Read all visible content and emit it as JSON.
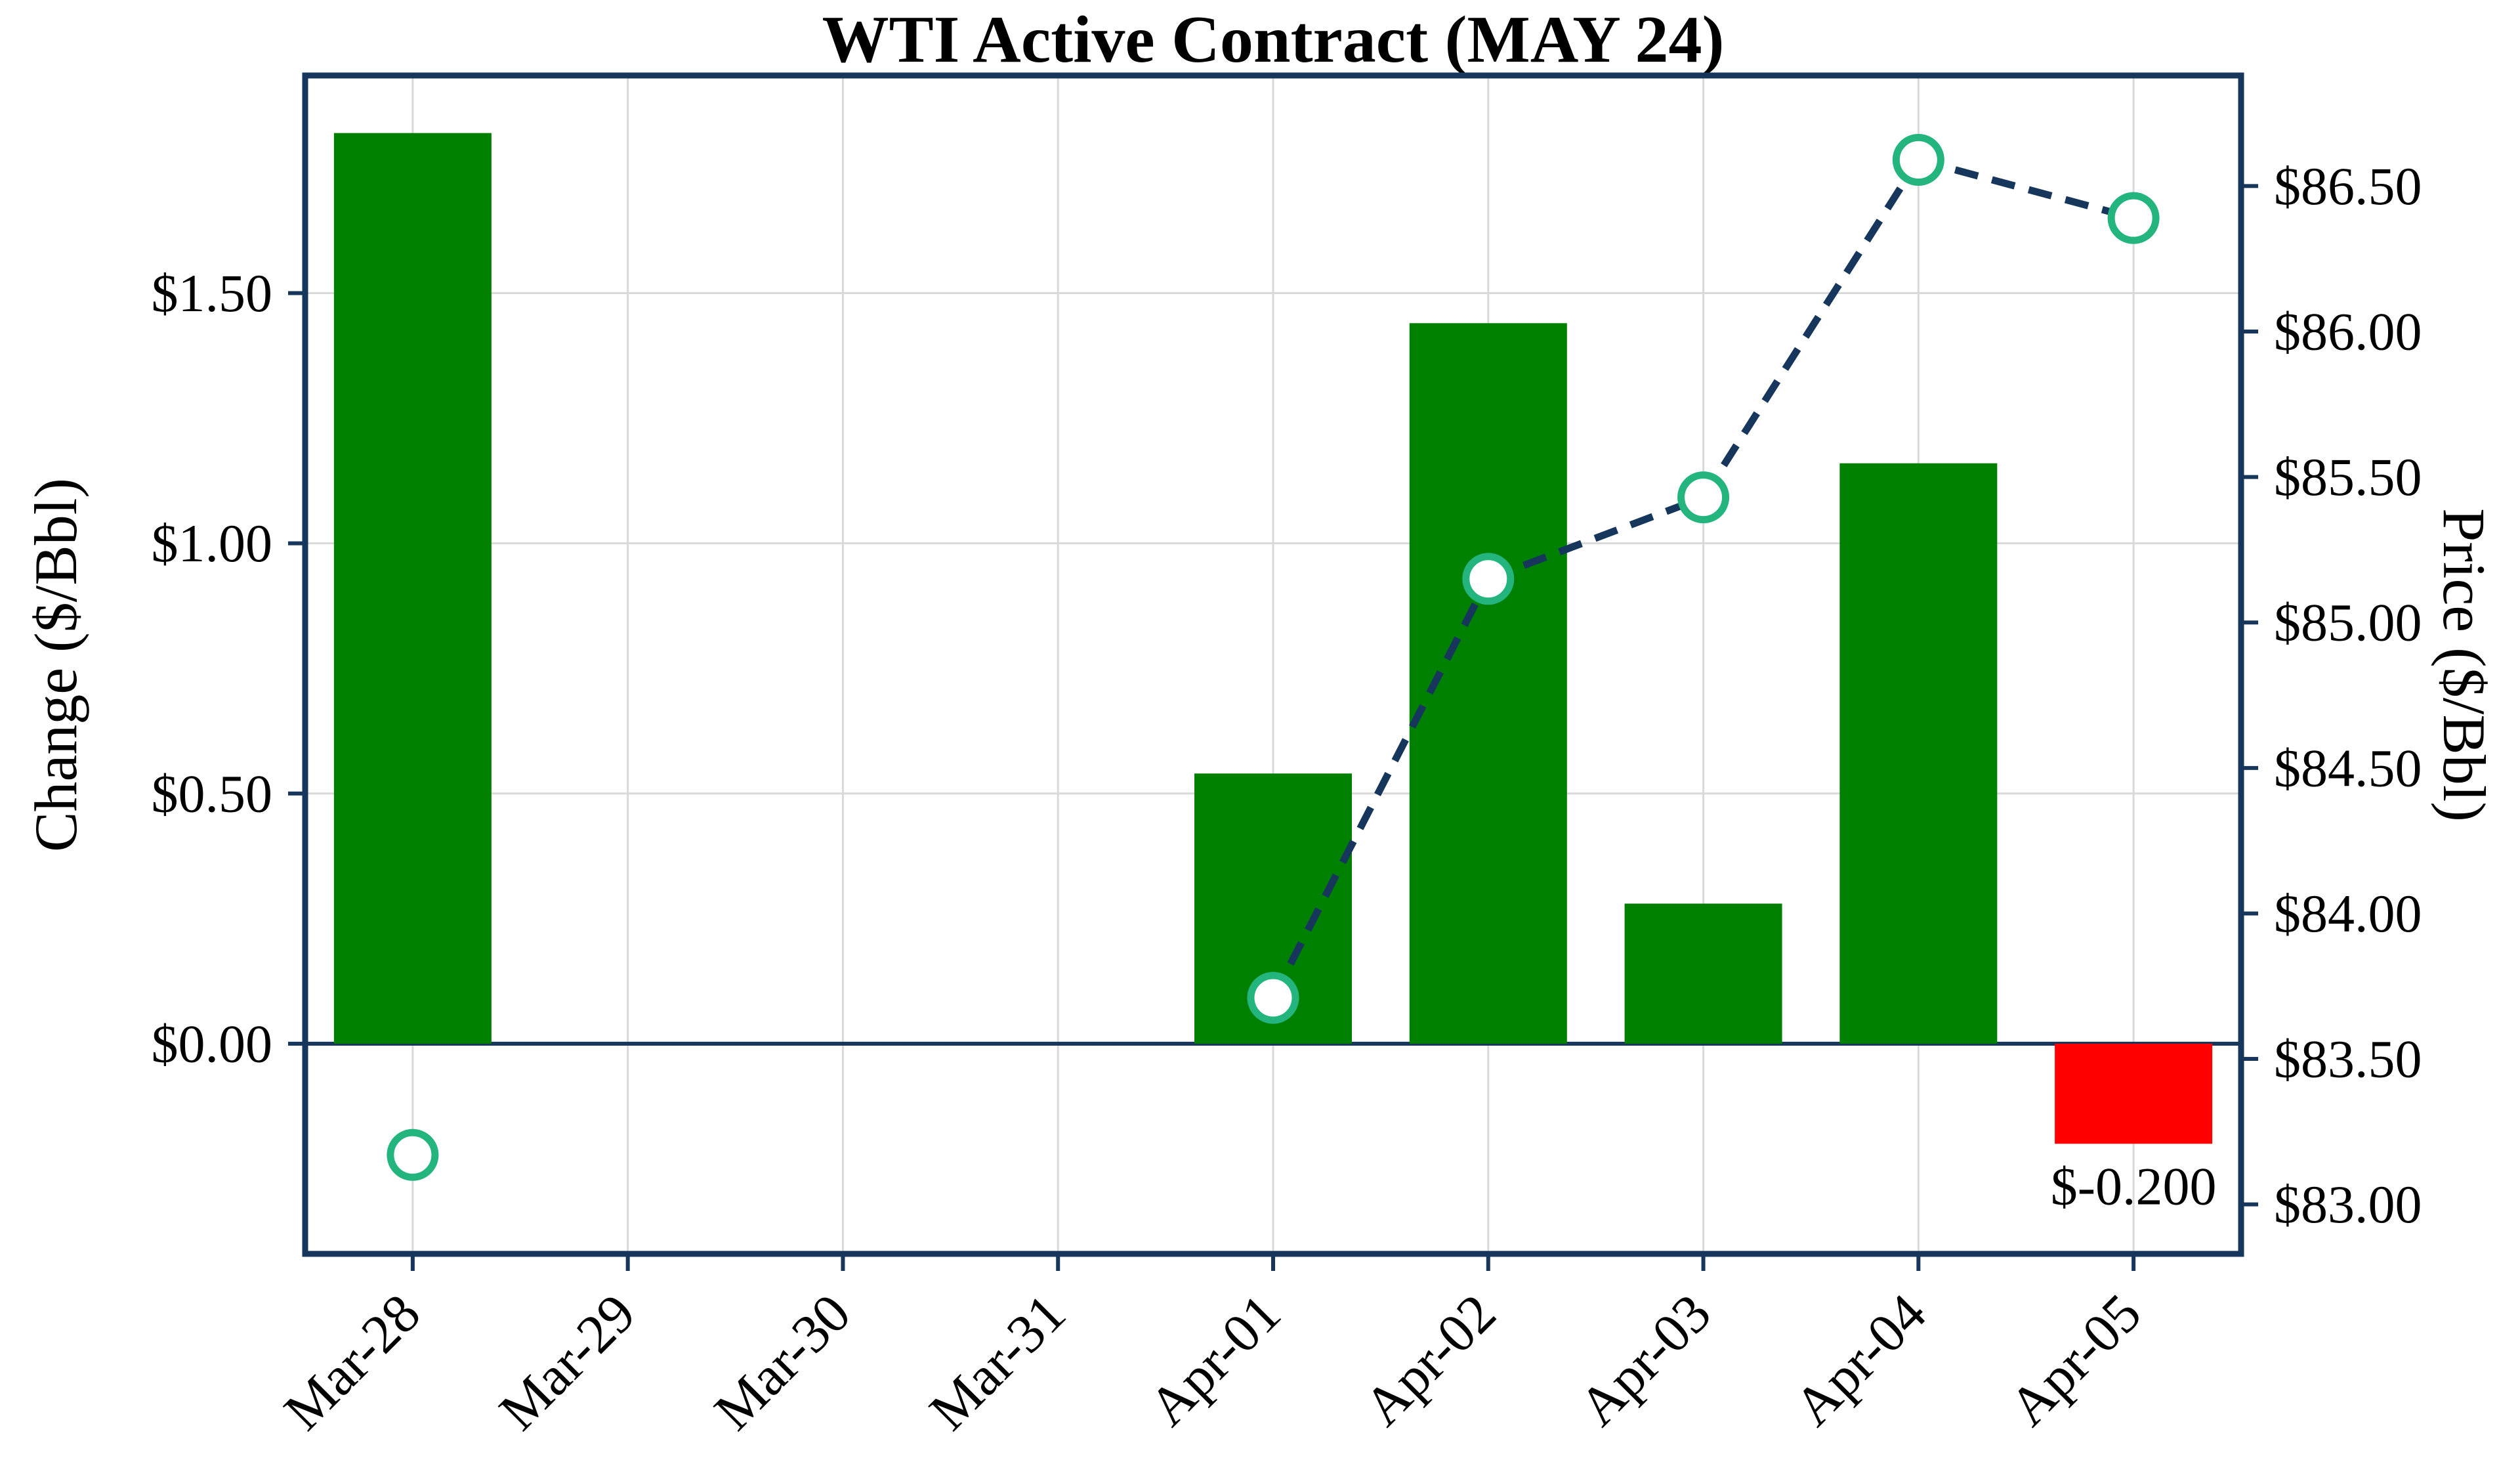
{
  "chart_data": {
    "type": "bar",
    "combo": true,
    "title": "WTI Active Contract (MAY 24)",
    "categories": [
      "Mar-28",
      "Mar-29",
      "Mar-30",
      "Mar-31",
      "Apr-01",
      "Apr-02",
      "Apr-03",
      "Apr-04",
      "Apr-05"
    ],
    "series": [
      {
        "name": "Change ($/Bbl)",
        "type": "bar",
        "axis": "left",
        "values": [
          1.82,
          null,
          null,
          null,
          0.54,
          1.44,
          0.28,
          1.16,
          -0.2
        ],
        "positive_color": "#008000",
        "negative_color": "#ff0000"
      },
      {
        "name": "Price ($/Bbl)",
        "type": "line",
        "axis": "right",
        "values": [
          83.17,
          null,
          null,
          null,
          83.71,
          85.15,
          85.43,
          86.59,
          86.39
        ],
        "line_color": "#16365c",
        "line_style": "dashed",
        "marker": "open-circle",
        "marker_color": "#24b47e",
        "marker_fill": "#ffffff"
      }
    ],
    "left_axis": {
      "label": "Change ($/Bbl)",
      "range": [
        -0.42,
        1.935
      ],
      "ticks": [
        {
          "value": 0.0,
          "label": "$0.00"
        },
        {
          "value": 0.5,
          "label": "$0.50"
        },
        {
          "value": 1.0,
          "label": "$1.00"
        },
        {
          "value": 1.5,
          "label": "$1.50"
        }
      ]
    },
    "right_axis": {
      "label": "Price ($/Bbl)",
      "range": [
        82.83,
        86.88
      ],
      "ticks": [
        {
          "value": 83.0,
          "label": "$83.00"
        },
        {
          "value": 83.5,
          "label": "$83.50"
        },
        {
          "value": 84.0,
          "label": "$84.00"
        },
        {
          "value": 84.5,
          "label": "$84.50"
        },
        {
          "value": 85.0,
          "label": "$85.00"
        },
        {
          "value": 85.5,
          "label": "$85.50"
        },
        {
          "value": 86.0,
          "label": "$86.00"
        },
        {
          "value": 86.5,
          "label": "$86.50"
        }
      ]
    },
    "annotation": {
      "text": "$-0.200",
      "category": "Apr-05"
    },
    "grid": true,
    "legend": "none",
    "colors": {
      "spine": "#16365c",
      "grid": "#d9d9d9",
      "zero_line": "#16365c",
      "background": "#ffffff"
    }
  }
}
